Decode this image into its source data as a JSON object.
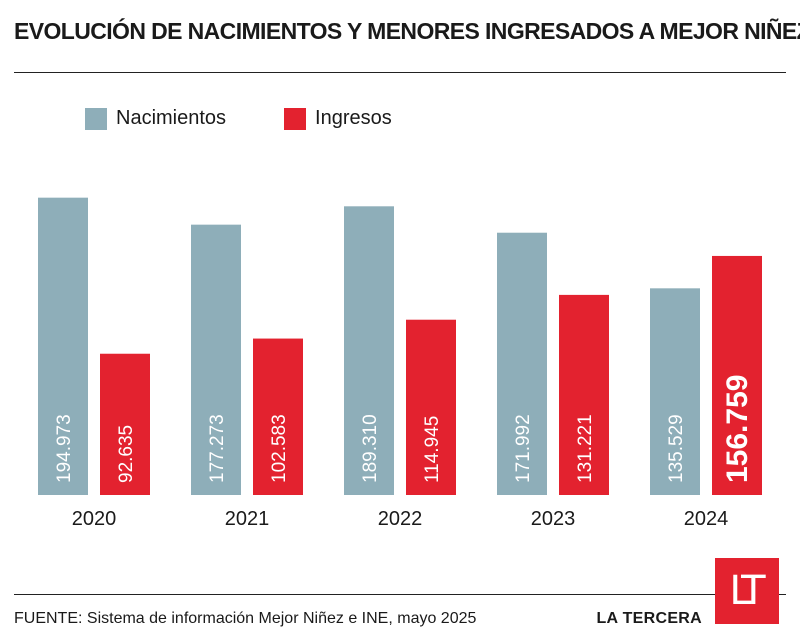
{
  "title": "EVOLUCIÓN DE NACIMIENTOS Y MENORES INGRESADOS A MEJOR NIÑEZ",
  "legend": [
    {
      "label": "Nacimientos",
      "color": "#8eaeb9"
    },
    {
      "label": "Ingresos",
      "color": "#e3222f"
    }
  ],
  "chart_data": {
    "type": "bar",
    "categories": [
      "2020",
      "2021",
      "2022",
      "2023",
      "2024"
    ],
    "series": [
      {
        "name": "Nacimientos",
        "color": "#8eaeb9",
        "values": [
          194973,
          177273,
          189310,
          171992,
          135529
        ],
        "labels": [
          "194.973",
          "177.273",
          "189.310",
          "171.992",
          "135.529"
        ]
      },
      {
        "name": "Ingresos",
        "color": "#e3222f",
        "values": [
          92635,
          102583,
          114945,
          131221,
          156759
        ],
        "labels": [
          "92.635",
          "102.583",
          "114.945",
          "131.221",
          "156.759"
        ]
      }
    ],
    "highlight": {
      "category": "2024",
      "series": "Ingresos"
    },
    "ylim": [
      0,
      200000
    ],
    "grid": false,
    "legend_position": "top-left"
  },
  "footer": {
    "source": "FUENTE: Sistema de información Mejor Niñez e INE, mayo 2025",
    "brand": "LA TERCERA",
    "logo": "LT"
  }
}
